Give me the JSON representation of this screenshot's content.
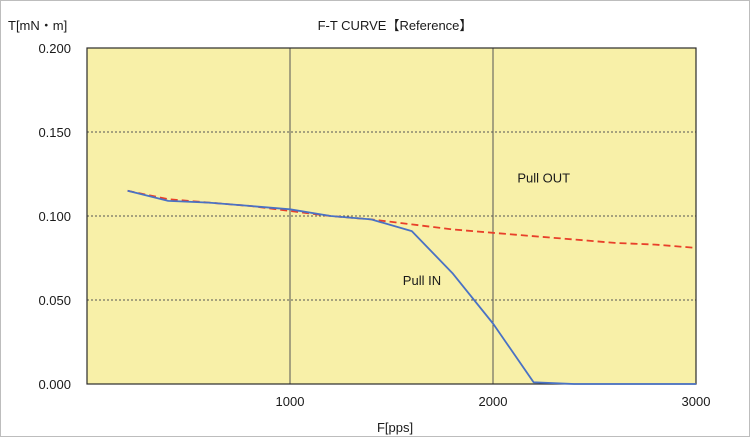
{
  "chart_data": {
    "type": "line",
    "title": "F-T  CURVE【Reference】",
    "ylabel": "T[mN・m]",
    "xlabel": "F[pps]",
    "xlim": [
      0,
      3000
    ],
    "ylim": [
      0,
      0.2
    ],
    "x_ticks": [
      "1000",
      "2000",
      "3000"
    ],
    "y_ticks": [
      "0.000",
      "0.050",
      "0.100",
      "0.150",
      "0.200"
    ],
    "grid": true,
    "series": [
      {
        "name": "Pull OUT",
        "style": "dashed",
        "color": "#e8402a",
        "points": [
          [
            200,
            0.115
          ],
          [
            400,
            0.11
          ],
          [
            600,
            0.108
          ],
          [
            800,
            0.106
          ],
          [
            1000,
            0.103
          ],
          [
            1200,
            0.1
          ],
          [
            1400,
            0.098
          ],
          [
            1600,
            0.095
          ],
          [
            1800,
            0.092
          ],
          [
            2000,
            0.09
          ],
          [
            2200,
            0.088
          ],
          [
            2400,
            0.086
          ],
          [
            2600,
            0.084
          ],
          [
            2800,
            0.083
          ],
          [
            3000,
            0.081
          ]
        ]
      },
      {
        "name": "Pull IN",
        "style": "solid",
        "color": "#4a72c4",
        "points": [
          [
            200,
            0.115
          ],
          [
            400,
            0.109
          ],
          [
            600,
            0.108
          ],
          [
            800,
            0.106
          ],
          [
            1000,
            0.104
          ],
          [
            1200,
            0.1
          ],
          [
            1400,
            0.098
          ],
          [
            1600,
            0.091
          ],
          [
            1800,
            0.066
          ],
          [
            2000,
            0.036
          ],
          [
            2200,
            0.001
          ],
          [
            2400,
            0.0
          ],
          [
            2600,
            0.0
          ],
          [
            2800,
            0.0
          ],
          [
            3000,
            0.0
          ]
        ]
      }
    ],
    "colors": {
      "plot_background": "#f8f0a8",
      "grid": "#555555",
      "border": "#2b2b2b"
    }
  }
}
